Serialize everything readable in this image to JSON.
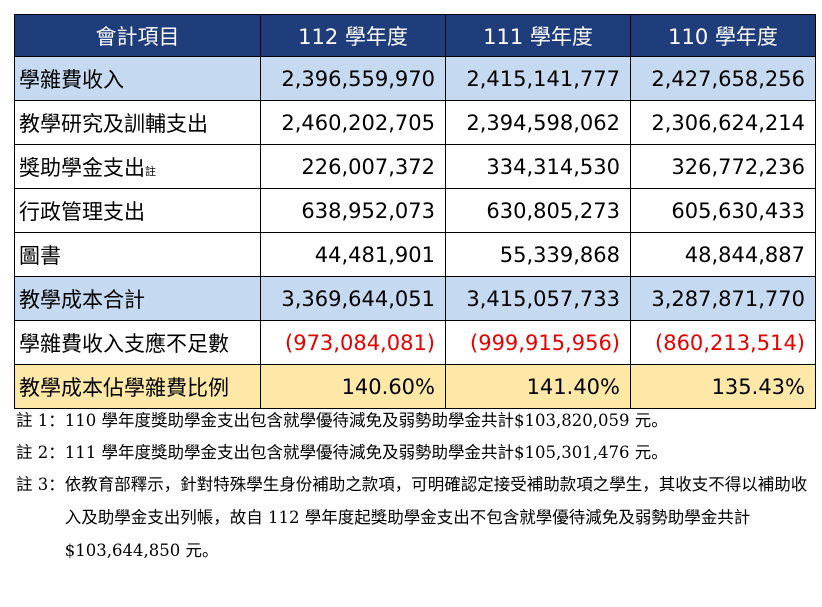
{
  "table": {
    "headers": [
      "會計項目",
      "112 學年度",
      "111 學年度",
      "110 學年度"
    ],
    "rows": [
      {
        "label": "學雜費收入",
        "label_sub": "",
        "values": [
          "2,396,559,970",
          "2,415,141,777",
          "2,427,658,256"
        ]
      },
      {
        "label": "教學研究及訓輔支出",
        "label_sub": "",
        "values": [
          "2,460,202,705",
          "2,394,598,062",
          "2,306,624,214"
        ]
      },
      {
        "label": "獎助學金支出",
        "label_sub": "註",
        "values": [
          "226,007,372",
          "334,314,530",
          "326,772,236"
        ]
      },
      {
        "label": "行政管理支出",
        "label_sub": "",
        "values": [
          "638,952,073",
          "630,805,273",
          "605,630,433"
        ]
      },
      {
        "label": "圖書",
        "label_sub": "",
        "values": [
          "44,481,901",
          "55,339,868",
          "48,844,887"
        ]
      },
      {
        "label": "教學成本合計",
        "label_sub": "",
        "values": [
          "3,369,644,051",
          "3,415,057,733",
          "3,287,871,770"
        ]
      },
      {
        "label": "學雜費收入支應不足數",
        "label_sub": "",
        "values": [
          "(973,084,081)",
          "(999,915,956)",
          "(860,213,514)"
        ]
      },
      {
        "label": "教學成本佔學雜費比例",
        "label_sub": "",
        "values": [
          "140.60%",
          "141.40%",
          "135.43%"
        ]
      }
    ]
  },
  "notes": [
    {
      "tag": "註 1：",
      "text": "110 學年度獎助學金支出包含就學優待減免及弱勢助學金共計$103,820,059 元。"
    },
    {
      "tag": "註 2：",
      "text": "111 學年度獎助學金支出包含就學優待減免及弱勢助學金共計$105,301,476 元。"
    },
    {
      "tag": "註 3：",
      "text": "依教育部釋示，針對特殊學生身份補助之款項，可明確認定接受補助款項之學生，其收支不得以補助收入及助學金支出列帳，故自 112 學年度起獎助學金支出不包含就學優待減免及弱勢助學金共計$103,644,850 元。"
    }
  ],
  "colors": {
    "header_bg": "#1f3d7a",
    "blue_row": "#c5d9f1",
    "gold_row": "#fde8a8",
    "negative": "#e60000"
  }
}
